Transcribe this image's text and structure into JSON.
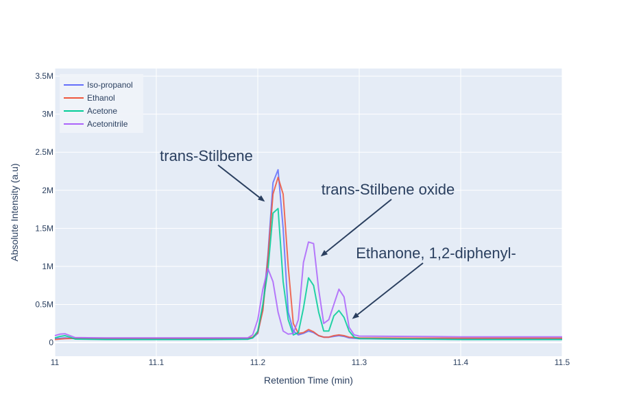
{
  "chart_data": {
    "type": "line",
    "xlabel": "Retention Time (min)",
    "ylabel": "Absolute Intensity (a.u)",
    "xlim": [
      11,
      11.5
    ],
    "ylim": [
      -180000,
      3600000
    ],
    "x_ticks": [
      {
        "value": 11,
        "label": "11"
      },
      {
        "value": 11.1,
        "label": "11.1"
      },
      {
        "value": 11.2,
        "label": "11.2"
      },
      {
        "value": 11.3,
        "label": "11.3"
      },
      {
        "value": 11.4,
        "label": "11.4"
      },
      {
        "value": 11.5,
        "label": "11.5"
      }
    ],
    "y_ticks": [
      {
        "value": 0,
        "label": "0"
      },
      {
        "value": 500000,
        "label": "0.5M"
      },
      {
        "value": 1000000,
        "label": "1M"
      },
      {
        "value": 1500000,
        "label": "1.5M"
      },
      {
        "value": 2000000,
        "label": "2M"
      },
      {
        "value": 2500000,
        "label": "2.5M"
      },
      {
        "value": 3000000,
        "label": "3M"
      },
      {
        "value": 3500000,
        "label": "3.5M"
      }
    ],
    "grid": true,
    "legend_position": "top-left",
    "plot_background": "#e5ecf6",
    "series": [
      {
        "name": "Iso-propanol",
        "color": "#636efa",
        "points": [
          [
            11,
            50000
          ],
          [
            11.01,
            60000
          ],
          [
            11.02,
            50000
          ],
          [
            11.05,
            45000
          ],
          [
            11.1,
            45000
          ],
          [
            11.15,
            45000
          ],
          [
            11.19,
            48000
          ],
          [
            11.195,
            60000
          ],
          [
            11.2,
            120000
          ],
          [
            11.205,
            450000
          ],
          [
            11.21,
            1150000
          ],
          [
            11.215,
            2100000
          ],
          [
            11.22,
            2270000
          ],
          [
            11.225,
            1500000
          ],
          [
            11.23,
            400000
          ],
          [
            11.235,
            150000
          ],
          [
            11.24,
            100000
          ],
          [
            11.245,
            120000
          ],
          [
            11.25,
            150000
          ],
          [
            11.255,
            130000
          ],
          [
            11.26,
            90000
          ],
          [
            11.265,
            70000
          ],
          [
            11.27,
            70000
          ],
          [
            11.275,
            80000
          ],
          [
            11.28,
            90000
          ],
          [
            11.285,
            80000
          ],
          [
            11.29,
            60000
          ],
          [
            11.3,
            50000
          ],
          [
            11.35,
            45000
          ],
          [
            11.4,
            45000
          ],
          [
            11.45,
            48000
          ],
          [
            11.5,
            48000
          ]
        ]
      },
      {
        "name": "Ethanol",
        "color": "#ef553b",
        "points": [
          [
            11,
            40000
          ],
          [
            11.01,
            50000
          ],
          [
            11.02,
            55000
          ],
          [
            11.05,
            55000
          ],
          [
            11.1,
            55000
          ],
          [
            11.15,
            55000
          ],
          [
            11.19,
            58000
          ],
          [
            11.195,
            70000
          ],
          [
            11.2,
            130000
          ],
          [
            11.205,
            420000
          ],
          [
            11.21,
            1100000
          ],
          [
            11.215,
            1950000
          ],
          [
            11.22,
            2170000
          ],
          [
            11.225,
            1950000
          ],
          [
            11.23,
            1000000
          ],
          [
            11.235,
            250000
          ],
          [
            11.24,
            120000
          ],
          [
            11.245,
            130000
          ],
          [
            11.25,
            170000
          ],
          [
            11.255,
            140000
          ],
          [
            11.26,
            90000
          ],
          [
            11.265,
            70000
          ],
          [
            11.27,
            70000
          ],
          [
            11.275,
            90000
          ],
          [
            11.28,
            100000
          ],
          [
            11.285,
            90000
          ],
          [
            11.29,
            70000
          ],
          [
            11.3,
            60000
          ],
          [
            11.35,
            58000
          ],
          [
            11.4,
            58000
          ],
          [
            11.45,
            58000
          ],
          [
            11.5,
            58000
          ]
        ]
      },
      {
        "name": "Acetone",
        "color": "#00cc96",
        "points": [
          [
            11,
            60000
          ],
          [
            11.005,
            80000
          ],
          [
            11.01,
            90000
          ],
          [
            11.015,
            70000
          ],
          [
            11.02,
            45000
          ],
          [
            11.05,
            40000
          ],
          [
            11.1,
            40000
          ],
          [
            11.15,
            40000
          ],
          [
            11.19,
            42000
          ],
          [
            11.195,
            60000
          ],
          [
            11.2,
            150000
          ],
          [
            11.205,
            500000
          ],
          [
            11.21,
            950000
          ],
          [
            11.215,
            1700000
          ],
          [
            11.22,
            1760000
          ],
          [
            11.225,
            800000
          ],
          [
            11.23,
            300000
          ],
          [
            11.235,
            100000
          ],
          [
            11.24,
            130000
          ],
          [
            11.245,
            450000
          ],
          [
            11.25,
            850000
          ],
          [
            11.255,
            750000
          ],
          [
            11.26,
            400000
          ],
          [
            11.265,
            150000
          ],
          [
            11.27,
            150000
          ],
          [
            11.275,
            350000
          ],
          [
            11.28,
            420000
          ],
          [
            11.285,
            330000
          ],
          [
            11.29,
            150000
          ],
          [
            11.295,
            70000
          ],
          [
            11.3,
            50000
          ],
          [
            11.35,
            45000
          ],
          [
            11.4,
            40000
          ],
          [
            11.45,
            40000
          ],
          [
            11.5,
            40000
          ]
        ]
      },
      {
        "name": "Acetonitrile",
        "color": "#ab63fa",
        "points": [
          [
            11,
            90000
          ],
          [
            11.005,
            110000
          ],
          [
            11.01,
            115000
          ],
          [
            11.015,
            90000
          ],
          [
            11.02,
            65000
          ],
          [
            11.05,
            60000
          ],
          [
            11.1,
            60000
          ],
          [
            11.15,
            60000
          ],
          [
            11.19,
            60000
          ],
          [
            11.195,
            100000
          ],
          [
            11.2,
            300000
          ],
          [
            11.205,
            700000
          ],
          [
            11.21,
            970000
          ],
          [
            11.215,
            800000
          ],
          [
            11.22,
            400000
          ],
          [
            11.225,
            150000
          ],
          [
            11.23,
            110000
          ],
          [
            11.235,
            120000
          ],
          [
            11.24,
            300000
          ],
          [
            11.245,
            1050000
          ],
          [
            11.25,
            1320000
          ],
          [
            11.255,
            1300000
          ],
          [
            11.26,
            700000
          ],
          [
            11.265,
            250000
          ],
          [
            11.27,
            300000
          ],
          [
            11.275,
            500000
          ],
          [
            11.28,
            700000
          ],
          [
            11.285,
            600000
          ],
          [
            11.29,
            200000
          ],
          [
            11.295,
            100000
          ],
          [
            11.3,
            85000
          ],
          [
            11.35,
            80000
          ],
          [
            11.4,
            75000
          ],
          [
            11.45,
            75000
          ],
          [
            11.5,
            75000
          ]
        ]
      }
    ],
    "annotations": [
      {
        "text": "trans-Stilbene",
        "target": [
          11.207,
          1850000
        ]
      },
      {
        "text": "trans-Stilbene oxide",
        "target": [
          11.262,
          1130000
        ]
      },
      {
        "text": "Ethanone, 1,2-diphenyl-",
        "target": [
          11.293,
          310000
        ]
      }
    ]
  }
}
